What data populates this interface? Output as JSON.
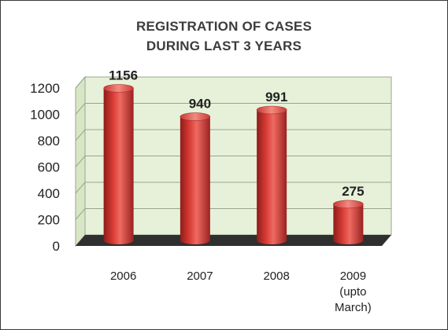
{
  "chart_data": {
    "type": "bar",
    "title_lines": [
      "REGISTRATION OF CASES",
      "DURING LAST 3 YEARS"
    ],
    "categories": [
      [
        "2006"
      ],
      [
        "2007"
      ],
      [
        "2008"
      ],
      [
        "2009",
        "(upto",
        "March)"
      ]
    ],
    "values": [
      1156,
      940,
      991,
      275
    ],
    "value_labels": [
      "1156",
      "940",
      "991",
      "275"
    ],
    "ylim": [
      0,
      1200
    ],
    "yticks": [
      "0",
      "200",
      "400",
      "600",
      "800",
      "1000",
      "1200"
    ],
    "grid": true,
    "colors": {
      "bar": "#c8332f",
      "bar_dark": "#8e1c1a",
      "bar_light": "#ef7a72",
      "wall": "#e7f1d9",
      "grid": "#9aa58e",
      "floor": "#2f2f2f"
    }
  }
}
